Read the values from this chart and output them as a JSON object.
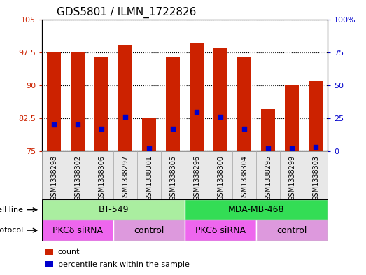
{
  "title": "GDS5801 / ILMN_1722826",
  "samples": [
    "GSM1338298",
    "GSM1338302",
    "GSM1338306",
    "GSM1338297",
    "GSM1338301",
    "GSM1338305",
    "GSM1338296",
    "GSM1338300",
    "GSM1338304",
    "GSM1338295",
    "GSM1338299",
    "GSM1338303"
  ],
  "bar_values": [
    97.5,
    97.5,
    96.5,
    99.0,
    82.5,
    96.5,
    99.5,
    98.5,
    96.5,
    84.5,
    90.0,
    91.0
  ],
  "percentile_values": [
    20,
    20,
    17,
    26,
    2,
    17,
    30,
    26,
    17,
    2,
    2,
    3
  ],
  "ylim_left": [
    75,
    105
  ],
  "ylim_right": [
    0,
    100
  ],
  "yticks_left": [
    75,
    82.5,
    90,
    97.5,
    105
  ],
  "yticks_right": [
    0,
    25,
    50,
    75,
    100
  ],
  "ytick_labels_left": [
    "75",
    "82.5",
    "90",
    "97.5",
    "105"
  ],
  "ytick_labels_right": [
    "0",
    "25",
    "50",
    "75",
    "100%"
  ],
  "bar_color": "#CC2200",
  "percentile_color": "#0000CC",
  "cell_line_groups": [
    {
      "label": "BT-549",
      "start": 0,
      "end": 6,
      "color": "#AAEEA0"
    },
    {
      "label": "MDA-MB-468",
      "start": 6,
      "end": 12,
      "color": "#33DD55"
    }
  ],
  "protocol_groups": [
    {
      "label": "PKCδ siRNA",
      "start": 0,
      "end": 3,
      "color": "#EE66EE"
    },
    {
      "label": "control",
      "start": 3,
      "end": 6,
      "color": "#DD99DD"
    },
    {
      "label": "PKCδ siRNA",
      "start": 6,
      "end": 9,
      "color": "#EE66EE"
    },
    {
      "label": "control",
      "start": 9,
      "end": 12,
      "color": "#DD99DD"
    }
  ],
  "legend_items": [
    {
      "label": "count",
      "color": "#CC2200"
    },
    {
      "label": "percentile rank within the sample",
      "color": "#0000CC"
    }
  ],
  "bar_bottom": 75,
  "bar_width": 0.6,
  "cell_line_row_label": "cell line",
  "protocol_row_label": "protocol",
  "title_fontsize": 11,
  "tick_fontsize": 8,
  "sample_fontsize": 7,
  "row_label_fontsize": 8,
  "group_label_fontsize": 9,
  "legend_fontsize": 8,
  "bg_color": "#E8E8E8"
}
